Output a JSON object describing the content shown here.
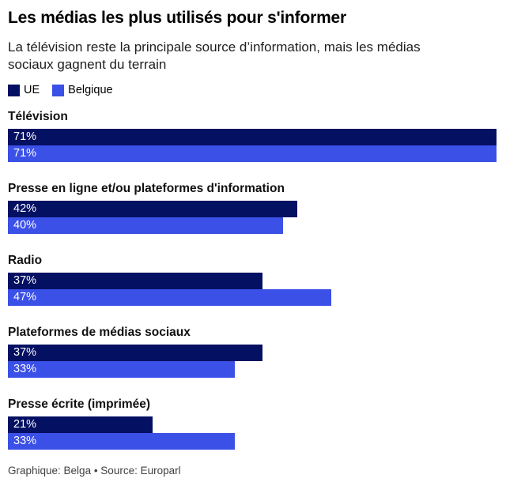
{
  "chart_data": {
    "type": "bar",
    "orientation": "horizontal",
    "title": "Les médias les plus utilisés pour s'informer",
    "subtitle": "La télévision reste la principale source d’information, mais les médias sociaux gagnent du terrain",
    "categories": [
      "Télévision",
      "Presse en ligne et/ou plateformes d'information",
      "Radio",
      "Plateformes de médias sociaux",
      "Presse écrite (imprimée)"
    ],
    "series": [
      {
        "name": "UE",
        "color": "#041062",
        "values": [
          71,
          42,
          37,
          37,
          21
        ]
      },
      {
        "name": "Belgique",
        "color": "#3b50e7",
        "values": [
          71,
          40,
          47,
          33,
          33
        ]
      }
    ],
    "value_suffix": "%",
    "xmax": 71,
    "grid": false,
    "legend_position": "top-left",
    "bar_label_color": "#ffffff"
  },
  "footer": {
    "credit": "Graphique: Belga • Source: Europarl"
  }
}
